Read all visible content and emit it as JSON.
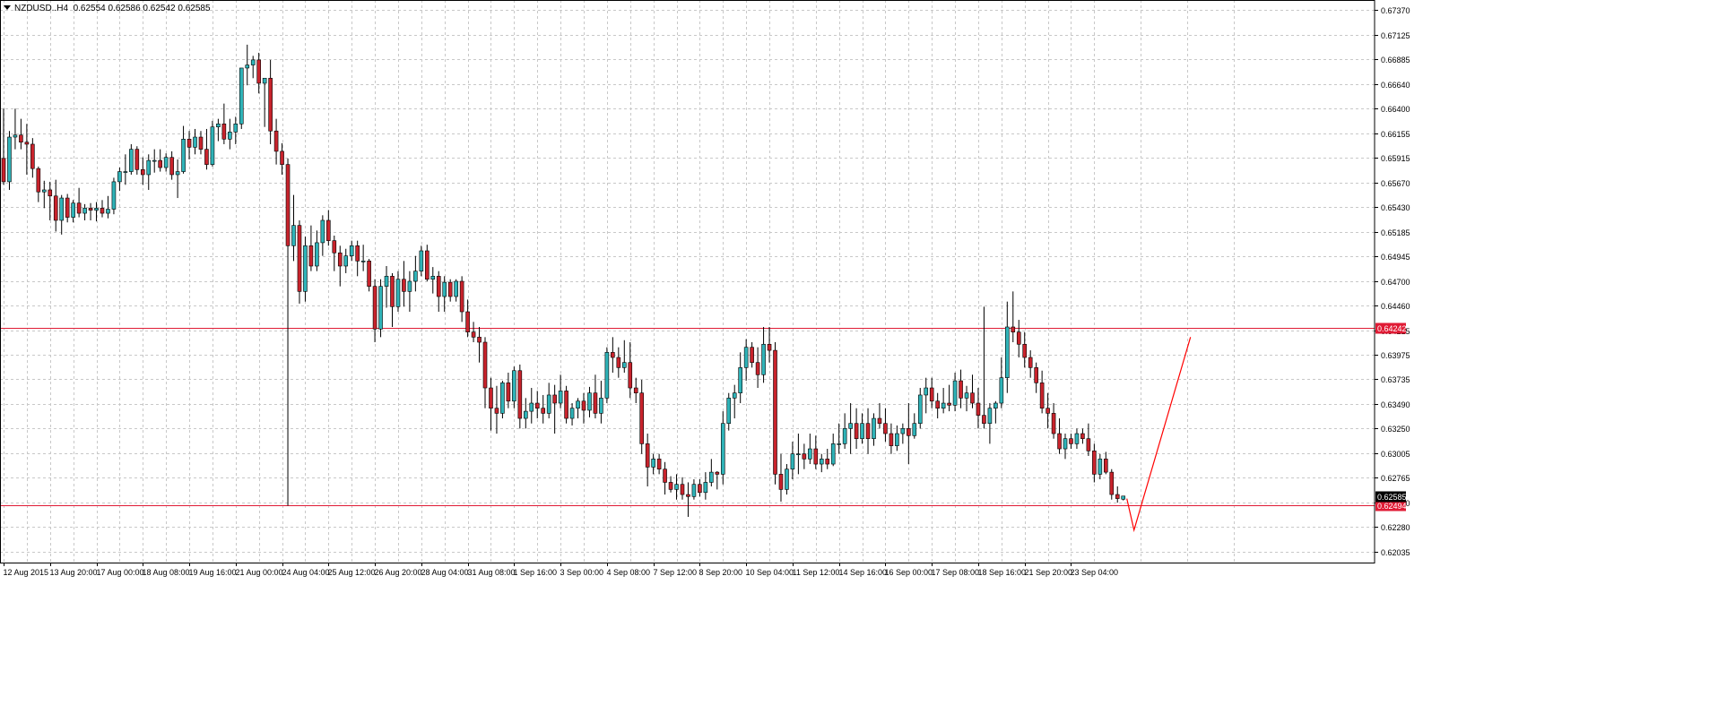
{
  "header": {
    "symbol": "NZDUSD..H4",
    "ohlc": "0.62554 0.62586 0.62542 0.62585"
  },
  "colors": {
    "bull": "#2fb3b8",
    "bear": "#c8232c",
    "wick": "#000000",
    "grid": "#c8c8c8",
    "level_line": "#e01b35",
    "projection": "#ff0000",
    "current_price_bg": "#000000"
  },
  "chart_data": {
    "type": "candlestick",
    "y_ticks": [
      "0.67370",
      "0.67125",
      "0.66885",
      "0.66640",
      "0.66400",
      "0.66155",
      "0.65915",
      "0.65670",
      "0.65430",
      "0.65185",
      "0.64945",
      "0.64700",
      "0.64460",
      "0.64215",
      "0.63975",
      "0.63735",
      "0.63490",
      "0.63250",
      "0.63005",
      "0.62765",
      "0.62520",
      "0.62280",
      "0.62035"
    ],
    "ylim": [
      0.6193,
      0.6747
    ],
    "x_ticks": [
      "12 Aug 2015",
      "13 Aug 20:00",
      "17 Aug 00:00",
      "18 Aug 08:00",
      "19 Aug 16:00",
      "21 Aug 00:00",
      "24 Aug 04:00",
      "25 Aug 12:00",
      "26 Aug 20:00",
      "28 Aug 04:00",
      "31 Aug 08:00",
      "1 Sep 16:00",
      "3 Sep 00:00",
      "4 Sep 08:00",
      "7 Sep 12:00",
      "8 Sep 20:00",
      "10 Sep 04:00",
      "11 Sep 12:00",
      "14 Sep 16:00",
      "16 Sep 00:00",
      "17 Sep 08:00",
      "18 Sep 16:00",
      "21 Sep 20:00",
      "23 Sep 04:00"
    ],
    "x_tick_index": [
      0,
      8,
      16,
      24,
      32,
      40,
      48,
      56,
      64,
      72,
      80,
      88,
      96,
      104,
      112,
      120,
      128,
      136,
      144,
      152,
      160,
      168,
      176,
      184
    ],
    "candles": [
      [
        0.6591,
        0.664,
        0.6565,
        0.6568
      ],
      [
        0.6568,
        0.6618,
        0.656,
        0.6612
      ],
      [
        0.6612,
        0.664,
        0.66,
        0.6614
      ],
      [
        0.6614,
        0.663,
        0.66,
        0.6607
      ],
      [
        0.6607,
        0.6625,
        0.6575,
        0.6605
      ],
      [
        0.6605,
        0.6611,
        0.6572,
        0.6581
      ],
      [
        0.6581,
        0.6583,
        0.6548,
        0.6558
      ],
      [
        0.6558,
        0.6569,
        0.6542,
        0.656
      ],
      [
        0.656,
        0.6568,
        0.653,
        0.6554
      ],
      [
        0.6554,
        0.657,
        0.6519,
        0.653
      ],
      [
        0.653,
        0.6555,
        0.6516,
        0.6552
      ],
      [
        0.6552,
        0.6556,
        0.6528,
        0.6533
      ],
      [
        0.6533,
        0.655,
        0.6528,
        0.6547
      ],
      [
        0.6547,
        0.6562,
        0.6533,
        0.6537
      ],
      [
        0.6537,
        0.6546,
        0.653,
        0.6542
      ],
      [
        0.6542,
        0.6547,
        0.653,
        0.654
      ],
      [
        0.654,
        0.6548,
        0.6529,
        0.6542
      ],
      [
        0.6542,
        0.655,
        0.6533,
        0.6537
      ],
      [
        0.6537,
        0.6554,
        0.6532,
        0.6541
      ],
      [
        0.6541,
        0.6572,
        0.6536,
        0.6568
      ],
      [
        0.6568,
        0.6582,
        0.6559,
        0.6578
      ],
      [
        0.6578,
        0.6595,
        0.6565,
        0.6578
      ],
      [
        0.6578,
        0.6605,
        0.6575,
        0.66
      ],
      [
        0.66,
        0.6603,
        0.6575,
        0.658
      ],
      [
        0.658,
        0.6592,
        0.6565,
        0.6575
      ],
      [
        0.6575,
        0.6595,
        0.656,
        0.6589
      ],
      [
        0.6589,
        0.66,
        0.6577,
        0.6589
      ],
      [
        0.6589,
        0.66,
        0.6578,
        0.6582
      ],
      [
        0.6582,
        0.6596,
        0.6578,
        0.6592
      ],
      [
        0.6592,
        0.6598,
        0.657,
        0.6575
      ],
      [
        0.6575,
        0.659,
        0.6552,
        0.6578
      ],
      [
        0.6578,
        0.6623,
        0.6576,
        0.661
      ],
      [
        0.661,
        0.6618,
        0.659,
        0.6602
      ],
      [
        0.6602,
        0.662,
        0.6595,
        0.6612
      ],
      [
        0.6612,
        0.6618,
        0.6595,
        0.66
      ],
      [
        0.66,
        0.662,
        0.658,
        0.6585
      ],
      [
        0.6585,
        0.6628,
        0.6583,
        0.6622
      ],
      [
        0.6622,
        0.663,
        0.6608,
        0.6625
      ],
      [
        0.6625,
        0.6645,
        0.6605,
        0.661
      ],
      [
        0.661,
        0.663,
        0.66,
        0.6617
      ],
      [
        0.6617,
        0.6632,
        0.6605,
        0.6625
      ],
      [
        0.6625,
        0.668,
        0.662,
        0.668
      ],
      [
        0.668,
        0.6703,
        0.6663,
        0.6683
      ],
      [
        0.6683,
        0.6692,
        0.667,
        0.6688
      ],
      [
        0.6688,
        0.6695,
        0.6655,
        0.6665
      ],
      [
        0.6665,
        0.667,
        0.6622,
        0.667
      ],
      [
        0.667,
        0.6688,
        0.6605,
        0.6618
      ],
      [
        0.6618,
        0.663,
        0.6585,
        0.6598
      ],
      [
        0.6598,
        0.6606,
        0.6575,
        0.6585
      ],
      [
        0.6585,
        0.6591,
        0.6249,
        0.6505
      ],
      [
        0.6505,
        0.6555,
        0.649,
        0.6525
      ],
      [
        0.6525,
        0.653,
        0.6448,
        0.646
      ],
      [
        0.646,
        0.6514,
        0.645,
        0.6505
      ],
      [
        0.6505,
        0.6525,
        0.648,
        0.6485
      ],
      [
        0.6485,
        0.652,
        0.648,
        0.6508
      ],
      [
        0.6508,
        0.6535,
        0.6495,
        0.653
      ],
      [
        0.653,
        0.654,
        0.6505,
        0.651
      ],
      [
        0.651,
        0.6515,
        0.648,
        0.6498
      ],
      [
        0.6498,
        0.6505,
        0.6465,
        0.6485
      ],
      [
        0.6485,
        0.6502,
        0.6478,
        0.6495
      ],
      [
        0.6495,
        0.651,
        0.649,
        0.6505
      ],
      [
        0.6505,
        0.651,
        0.6475,
        0.649
      ],
      [
        0.649,
        0.6506,
        0.648,
        0.649
      ],
      [
        0.649,
        0.6492,
        0.646,
        0.6465
      ],
      [
        0.6465,
        0.6472,
        0.641,
        0.6423
      ],
      [
        0.6423,
        0.6472,
        0.6415,
        0.6465
      ],
      [
        0.6465,
        0.6485,
        0.6444,
        0.6475
      ],
      [
        0.6475,
        0.6478,
        0.6425,
        0.6445
      ],
      [
        0.6445,
        0.648,
        0.644,
        0.6472
      ],
      [
        0.6472,
        0.649,
        0.6445,
        0.646
      ],
      [
        0.646,
        0.648,
        0.644,
        0.647
      ],
      [
        0.647,
        0.6495,
        0.646,
        0.648
      ],
      [
        0.648,
        0.6505,
        0.6475,
        0.65
      ],
      [
        0.65,
        0.6506,
        0.647,
        0.6472
      ],
      [
        0.6472,
        0.6484,
        0.6458,
        0.6475
      ],
      [
        0.6475,
        0.648,
        0.644,
        0.6455
      ],
      [
        0.6455,
        0.6475,
        0.644,
        0.6469
      ],
      [
        0.6469,
        0.6472,
        0.645,
        0.6455
      ],
      [
        0.6455,
        0.6472,
        0.645,
        0.647
      ],
      [
        0.647,
        0.6475,
        0.643,
        0.644
      ],
      [
        0.644,
        0.6452,
        0.6415,
        0.642
      ],
      [
        0.642,
        0.643,
        0.641,
        0.6415
      ],
      [
        0.6415,
        0.6425,
        0.639,
        0.641
      ],
      [
        0.641,
        0.6415,
        0.6345,
        0.6365
      ],
      [
        0.6365,
        0.6375,
        0.6323,
        0.6345
      ],
      [
        0.6345,
        0.6367,
        0.632,
        0.634
      ],
      [
        0.634,
        0.6372,
        0.6335,
        0.637
      ],
      [
        0.637,
        0.638,
        0.6345,
        0.6352
      ],
      [
        0.6352,
        0.6386,
        0.6345,
        0.6382
      ],
      [
        0.6382,
        0.6388,
        0.6325,
        0.6335
      ],
      [
        0.6335,
        0.6355,
        0.6325,
        0.6342
      ],
      [
        0.6342,
        0.6365,
        0.633,
        0.635
      ],
      [
        0.635,
        0.6362,
        0.6335,
        0.6345
      ],
      [
        0.6345,
        0.6358,
        0.633,
        0.634
      ],
      [
        0.634,
        0.637,
        0.6335,
        0.6358
      ],
      [
        0.6358,
        0.6368,
        0.632,
        0.635
      ],
      [
        0.635,
        0.6378,
        0.6345,
        0.6362
      ],
      [
        0.6362,
        0.6367,
        0.633,
        0.6335
      ],
      [
        0.6335,
        0.635,
        0.6328,
        0.6345
      ],
      [
        0.6345,
        0.6355,
        0.6335,
        0.6352
      ],
      [
        0.6352,
        0.636,
        0.633,
        0.6343
      ],
      [
        0.6343,
        0.6366,
        0.6336,
        0.636
      ],
      [
        0.636,
        0.6378,
        0.6335,
        0.634
      ],
      [
        0.634,
        0.6372,
        0.633,
        0.6355
      ],
      [
        0.6355,
        0.6405,
        0.635,
        0.64
      ],
      [
        0.64,
        0.6415,
        0.638,
        0.6395
      ],
      [
        0.6395,
        0.6405,
        0.6375,
        0.6385
      ],
      [
        0.6385,
        0.6412,
        0.638,
        0.639
      ],
      [
        0.639,
        0.641,
        0.6355,
        0.6365
      ],
      [
        0.6365,
        0.6375,
        0.635,
        0.636
      ],
      [
        0.636,
        0.6373,
        0.63,
        0.631
      ],
      [
        0.631,
        0.632,
        0.6268,
        0.6287
      ],
      [
        0.6287,
        0.63,
        0.628,
        0.6295
      ],
      [
        0.6295,
        0.63,
        0.628,
        0.6285
      ],
      [
        0.6285,
        0.6292,
        0.626,
        0.6272
      ],
      [
        0.6272,
        0.6278,
        0.6262,
        0.6265
      ],
      [
        0.6265,
        0.628,
        0.6255,
        0.627
      ],
      [
        0.627,
        0.6277,
        0.6255,
        0.626
      ],
      [
        0.626,
        0.6272,
        0.6238,
        0.6258
      ],
      [
        0.6258,
        0.6275,
        0.6255,
        0.627
      ],
      [
        0.627,
        0.6275,
        0.6258,
        0.6262
      ],
      [
        0.6262,
        0.6282,
        0.6255,
        0.6272
      ],
      [
        0.6272,
        0.6295,
        0.6268,
        0.6282
      ],
      [
        0.6282,
        0.6283,
        0.6265,
        0.628
      ],
      [
        0.628,
        0.6342,
        0.627,
        0.633
      ],
      [
        0.633,
        0.636,
        0.6323,
        0.6355
      ],
      [
        0.6355,
        0.6368,
        0.6335,
        0.636
      ],
      [
        0.636,
        0.64,
        0.635,
        0.6385
      ],
      [
        0.6385,
        0.6413,
        0.6372,
        0.6405
      ],
      [
        0.6405,
        0.641,
        0.6385,
        0.639
      ],
      [
        0.639,
        0.6405,
        0.6365,
        0.6378
      ],
      [
        0.6378,
        0.6425,
        0.637,
        0.6408
      ],
      [
        0.6408,
        0.6425,
        0.639,
        0.6402
      ],
      [
        0.6402,
        0.641,
        0.627,
        0.628
      ],
      [
        0.628,
        0.63,
        0.6253,
        0.6265
      ],
      [
        0.6265,
        0.629,
        0.626,
        0.6285
      ],
      [
        0.6285,
        0.6312,
        0.6275,
        0.63
      ],
      [
        0.63,
        0.632,
        0.628,
        0.63
      ],
      [
        0.63,
        0.631,
        0.6285,
        0.6295
      ],
      [
        0.6295,
        0.632,
        0.629,
        0.6305
      ],
      [
        0.6305,
        0.6318,
        0.6285,
        0.629
      ],
      [
        0.629,
        0.63,
        0.6282,
        0.6295
      ],
      [
        0.6295,
        0.6305,
        0.6285,
        0.629
      ],
      [
        0.629,
        0.632,
        0.6288,
        0.631
      ],
      [
        0.631,
        0.633,
        0.63,
        0.631
      ],
      [
        0.631,
        0.634,
        0.6305,
        0.6325
      ],
      [
        0.6325,
        0.635,
        0.63,
        0.633
      ],
      [
        0.633,
        0.6345,
        0.6305,
        0.6315
      ],
      [
        0.6315,
        0.634,
        0.631,
        0.633
      ],
      [
        0.633,
        0.6345,
        0.63,
        0.6315
      ],
      [
        0.6315,
        0.634,
        0.6308,
        0.6335
      ],
      [
        0.6335,
        0.635,
        0.6325,
        0.633
      ],
      [
        0.633,
        0.6345,
        0.6312,
        0.632
      ],
      [
        0.632,
        0.633,
        0.63,
        0.6308
      ],
      [
        0.6308,
        0.6328,
        0.6303,
        0.632
      ],
      [
        0.632,
        0.633,
        0.631,
        0.6325
      ],
      [
        0.6325,
        0.635,
        0.629,
        0.6318
      ],
      [
        0.6318,
        0.634,
        0.6315,
        0.633
      ],
      [
        0.633,
        0.6365,
        0.6325,
        0.6358
      ],
      [
        0.6358,
        0.6375,
        0.634,
        0.6365
      ],
      [
        0.6365,
        0.6375,
        0.6345,
        0.6352
      ],
      [
        0.6352,
        0.636,
        0.6335,
        0.6345
      ],
      [
        0.6345,
        0.6365,
        0.634,
        0.635
      ],
      [
        0.635,
        0.6368,
        0.6342,
        0.6348
      ],
      [
        0.6348,
        0.638,
        0.6342,
        0.6372
      ],
      [
        0.6372,
        0.6383,
        0.6345,
        0.6355
      ],
      [
        0.6355,
        0.6367,
        0.6342,
        0.636
      ],
      [
        0.636,
        0.6378,
        0.6345,
        0.635
      ],
      [
        0.635,
        0.6365,
        0.6325,
        0.6338
      ],
      [
        0.6338,
        0.6445,
        0.6325,
        0.633
      ],
      [
        0.633,
        0.635,
        0.631,
        0.6345
      ],
      [
        0.6345,
        0.6352,
        0.633,
        0.635
      ],
      [
        0.635,
        0.6395,
        0.6345,
        0.6375
      ],
      [
        0.6375,
        0.645,
        0.636,
        0.6425
      ],
      [
        0.6425,
        0.646,
        0.641,
        0.642
      ],
      [
        0.642,
        0.6432,
        0.6395,
        0.6408
      ],
      [
        0.6408,
        0.642,
        0.6385,
        0.6395
      ],
      [
        0.6395,
        0.6402,
        0.6375,
        0.6385
      ],
      [
        0.6385,
        0.639,
        0.636,
        0.637
      ],
      [
        0.637,
        0.6382,
        0.634,
        0.6345
      ],
      [
        0.6345,
        0.636,
        0.6325,
        0.634
      ],
      [
        0.634,
        0.635,
        0.6315,
        0.632
      ],
      [
        0.632,
        0.6335,
        0.63,
        0.6305
      ],
      [
        0.6305,
        0.632,
        0.6295,
        0.6315
      ],
      [
        0.6315,
        0.632,
        0.6305,
        0.631
      ],
      [
        0.631,
        0.6325,
        0.6305,
        0.632
      ],
      [
        0.632,
        0.6325,
        0.631,
        0.6315
      ],
      [
        0.6315,
        0.633,
        0.6298,
        0.6303
      ],
      [
        0.6303,
        0.631,
        0.6272,
        0.628
      ],
      [
        0.628,
        0.63,
        0.6275,
        0.6295
      ],
      [
        0.6295,
        0.6302,
        0.628,
        0.6282
      ],
      [
        0.6282,
        0.6285,
        0.6255,
        0.626
      ],
      [
        0.626,
        0.6268,
        0.6252,
        0.6256
      ],
      [
        0.62554,
        0.62586,
        0.62542,
        0.62585
      ]
    ],
    "levels": [
      {
        "price": 0.64242,
        "label": "0.64242"
      },
      {
        "price": 0.62494,
        "label": "0.62494"
      }
    ],
    "current_price": {
      "price": 0.62585,
      "label": "0.62585"
    },
    "projection_path": [
      [
        0.6256,
        "start"
      ],
      [
        0.6225,
        "dip"
      ],
      [
        0.6415,
        "target"
      ]
    ],
    "grid": true
  }
}
